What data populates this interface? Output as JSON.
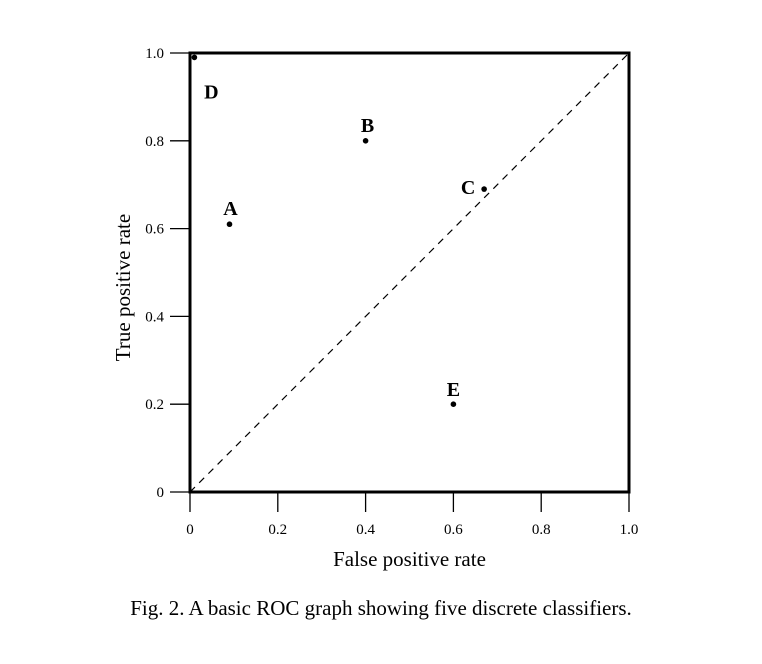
{
  "chart_data": {
    "type": "scatter",
    "title": "",
    "xlabel": "False positive rate",
    "ylabel": "True positive rate",
    "xlim": [
      0,
      1.0
    ],
    "ylim": [
      0,
      1.0
    ],
    "x_ticks": [
      0,
      0.2,
      0.4,
      0.6,
      0.8,
      1.0
    ],
    "x_tick_labels": [
      "0",
      "0.2",
      "0.4",
      "0.6",
      "0.8",
      "1.0"
    ],
    "y_ticks": [
      0,
      0.2,
      0.4,
      0.6,
      0.8,
      1.0
    ],
    "y_tick_labels": [
      "0",
      "0.2",
      "0.4",
      "0.6",
      "0.8",
      "1.0"
    ],
    "grid": false,
    "diagonal_reference": {
      "from": [
        0,
        0
      ],
      "to": [
        1.0,
        1.0
      ],
      "style": "dashed"
    },
    "points": [
      {
        "label": "A",
        "x": 0.09,
        "y": 0.61
      },
      {
        "label": "B",
        "x": 0.4,
        "y": 0.8
      },
      {
        "label": "C",
        "x": 0.67,
        "y": 0.69
      },
      {
        "label": "D",
        "x": 0.01,
        "y": 0.99
      },
      {
        "label": "E",
        "x": 0.6,
        "y": 0.2
      }
    ]
  },
  "caption": "Fig. 2.  A basic ROC graph showing five discrete classifiers."
}
